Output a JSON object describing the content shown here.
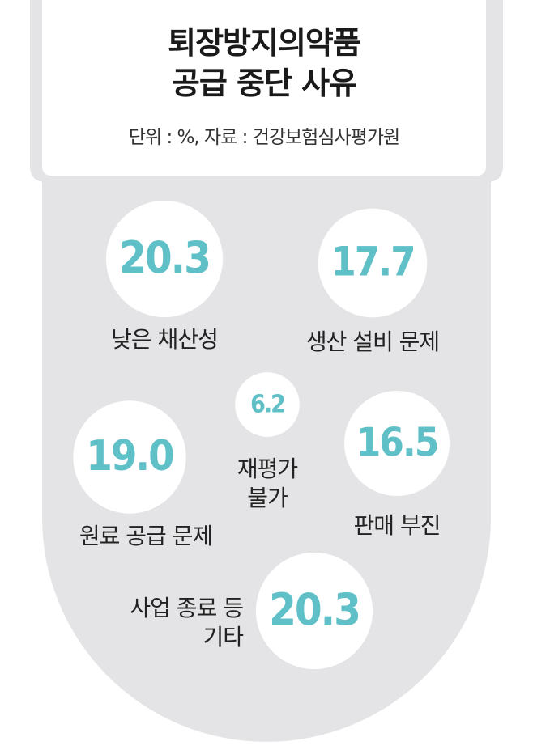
{
  "chart_data": {
    "type": "bubble",
    "title": "퇴장방지의약품\n공급 중단 사유",
    "subtitle": "단위 : %, 자료 : 건강보험심사평가원",
    "categories": [
      "낮은 채산성",
      "생산 설비 문제",
      "재평가\n불가",
      "원료 공급 문제",
      "판매 부진",
      "사업 종료 등\n기타"
    ],
    "values": [
      20.3,
      17.7,
      6.2,
      19.0,
      16.5,
      20.3
    ],
    "value_labels": [
      "20.3",
      "17.7",
      "6.2",
      "19.0",
      "16.5",
      "20.3"
    ],
    "color": "#ffffff",
    "label_color": "#5fc0c8"
  }
}
